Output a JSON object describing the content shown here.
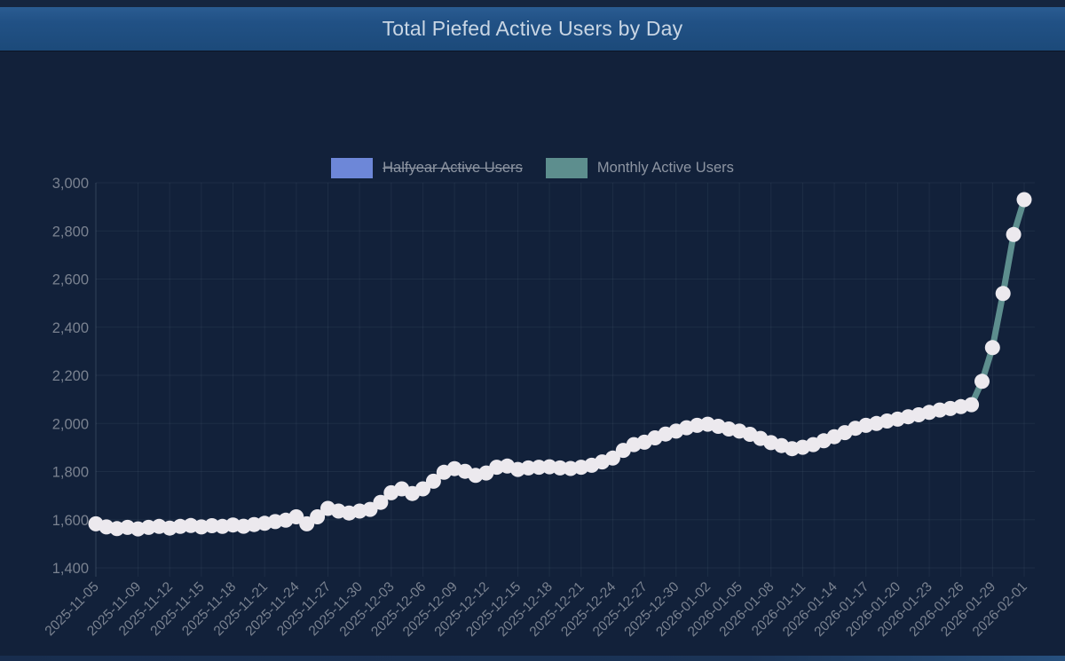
{
  "window": {
    "title": "Total Piefed Active Users by Day"
  },
  "colors": {
    "background": "#12213a",
    "title_bar": "#215185",
    "title_text": "#c9d6e4",
    "axis_text": "#7a8290",
    "legend_text": "#8d95a2",
    "halfyear_series": "#6d87d8",
    "monthly_series": "#5d8e8e",
    "point": "#ece9ee",
    "gridline": "rgba(170,185,205,0.08)"
  },
  "chart_data": {
    "type": "line",
    "title": "Total Piefed Active Users by Day",
    "xlabel": "",
    "ylabel": "",
    "grid": true,
    "legend_position": "top",
    "ylim": [
      1400,
      3000
    ],
    "y_ticks": [
      "1,400",
      "1,600",
      "1,800",
      "2,000",
      "2,200",
      "2,400",
      "2,600",
      "2,800",
      "3,000"
    ],
    "x_tick_labels": [
      "2025-11-05",
      "2025-11-09",
      "2025-11-12",
      "2025-11-15",
      "2025-11-18",
      "2025-11-21",
      "2025-11-24",
      "2025-11-27",
      "2025-11-30",
      "2025-12-03",
      "2025-12-06",
      "2025-12-09",
      "2025-12-12",
      "2025-12-15",
      "2025-12-18",
      "2025-12-21",
      "2025-12-24",
      "2025-12-27",
      "2025-12-30",
      "2026-01-02",
      "2026-01-05",
      "2026-01-08",
      "2026-01-11",
      "2026-01-14",
      "2026-01-17",
      "2026-01-20",
      "2026-01-23",
      "2026-01-26",
      "2026-01-29",
      "2026-02-01"
    ],
    "point_color": "#ece9ee",
    "point_radius": 8.5,
    "line_width": 7,
    "x": [
      "2025-11-05",
      "2025-11-06",
      "2025-11-07",
      "2025-11-08",
      "2025-11-09",
      "2025-11-10",
      "2025-11-11",
      "2025-11-12",
      "2025-11-13",
      "2025-11-14",
      "2025-11-15",
      "2025-11-16",
      "2025-11-17",
      "2025-11-18",
      "2025-11-19",
      "2025-11-20",
      "2025-11-21",
      "2025-11-22",
      "2025-11-23",
      "2025-11-24",
      "2025-11-25",
      "2025-11-26",
      "2025-11-27",
      "2025-11-28",
      "2025-11-29",
      "2025-11-30",
      "2025-12-01",
      "2025-12-02",
      "2025-12-03",
      "2025-12-04",
      "2025-12-05",
      "2025-12-06",
      "2025-12-07",
      "2025-12-08",
      "2025-12-09",
      "2025-12-10",
      "2025-12-11",
      "2025-12-12",
      "2025-12-13",
      "2025-12-14",
      "2025-12-15",
      "2025-12-16",
      "2025-12-17",
      "2025-12-18",
      "2025-12-19",
      "2025-12-20",
      "2025-12-21",
      "2025-12-22",
      "2025-12-23",
      "2025-12-24",
      "2025-12-25",
      "2025-12-26",
      "2025-12-27",
      "2025-12-28",
      "2025-12-29",
      "2025-12-30",
      "2025-12-31",
      "2026-01-01",
      "2026-01-02",
      "2026-01-03",
      "2026-01-04",
      "2026-01-05",
      "2026-01-06",
      "2026-01-07",
      "2026-01-08",
      "2026-01-09",
      "2026-01-10",
      "2026-01-11",
      "2026-01-12",
      "2026-01-13",
      "2026-01-14",
      "2026-01-15",
      "2026-01-16",
      "2026-01-17",
      "2026-01-18",
      "2026-01-19",
      "2026-01-20",
      "2026-01-21",
      "2026-01-22",
      "2026-01-23",
      "2026-01-24",
      "2026-01-25",
      "2026-01-26",
      "2026-01-27",
      "2026-01-28",
      "2026-01-29",
      "2026-01-30",
      "2026-01-31",
      "2026-02-01"
    ],
    "series": [
      {
        "name": "Halfyear Active Users",
        "color": "#6d87d8",
        "hidden": true,
        "values": []
      },
      {
        "name": "Monthly Active Users",
        "color": "#5d8e8e",
        "hidden": false,
        "values": [
          1583,
          1570,
          1563,
          1568,
          1562,
          1568,
          1572,
          1565,
          1572,
          1576,
          1570,
          1575,
          1572,
          1578,
          1573,
          1580,
          1585,
          1592,
          1598,
          1612,
          1583,
          1612,
          1647,
          1636,
          1628,
          1636,
          1643,
          1672,
          1712,
          1728,
          1709,
          1728,
          1760,
          1797,
          1812,
          1801,
          1784,
          1794,
          1818,
          1823,
          1809,
          1815,
          1818,
          1820,
          1815,
          1813,
          1818,
          1826,
          1840,
          1856,
          1888,
          1912,
          1922,
          1940,
          1956,
          1968,
          1982,
          1992,
          1997,
          1988,
          1977,
          1968,
          1955,
          1938,
          1920,
          1908,
          1895,
          1901,
          1912,
          1928,
          1945,
          1962,
          1980,
          1992,
          2000,
          2010,
          2018,
          2028,
          2036,
          2046,
          2056,
          2062,
          2070,
          2078,
          2175,
          2315,
          2540,
          2785,
          2930
        ]
      }
    ]
  }
}
